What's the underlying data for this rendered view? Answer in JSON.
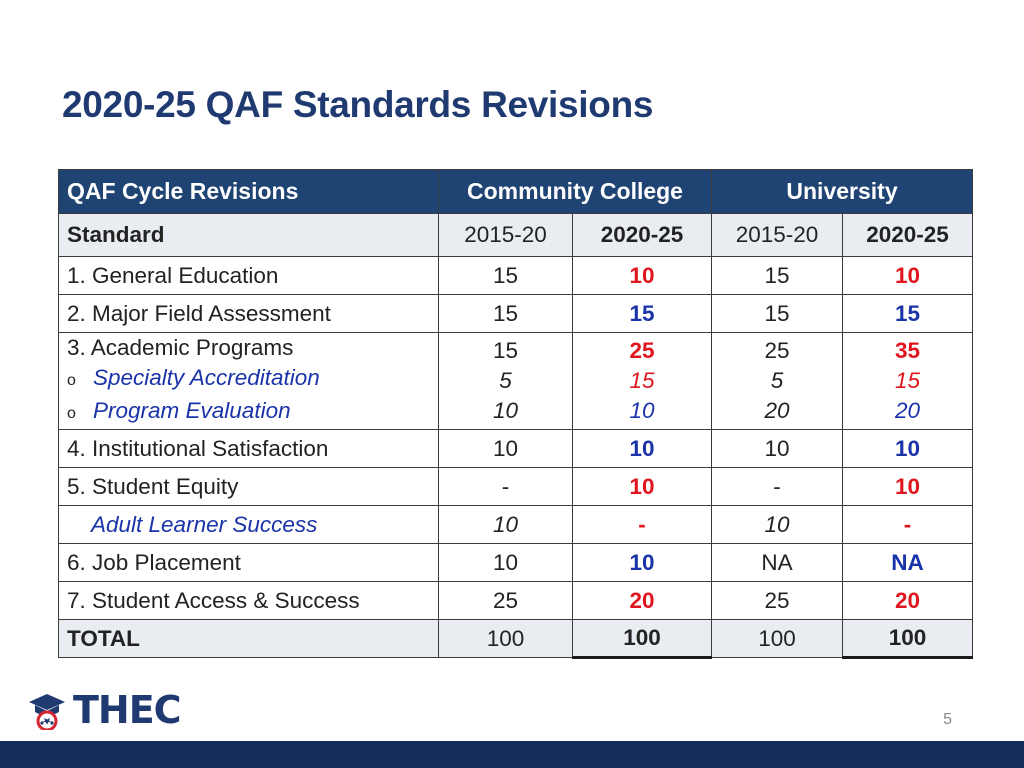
{
  "title": "2020-25 QAF Standards Revisions",
  "table": {
    "header": [
      "QAF Cycle Revisions",
      "Community College",
      "University"
    ],
    "subheader": [
      "Standard",
      "2015-20",
      "2020-25",
      "2015-20",
      "2020-25"
    ],
    "rows": [
      {
        "label": "1. General Education",
        "cc1520": "15",
        "cc2025": "10",
        "u1520": "15",
        "u2025": "10"
      },
      {
        "label": "2. Major Field Assessment",
        "cc1520": "15",
        "cc2025": "15",
        "u1520": "15",
        "u2025": "15"
      },
      {
        "label": "3. Academic Programs",
        "cc1520": "15",
        "cc2025": "25",
        "u1520": "25",
        "u2025": "35",
        "subitems": [
          {
            "label": "Specialty Accreditation",
            "cc1520": "5",
            "cc2025": "15",
            "u1520": "5",
            "u2025": "15"
          },
          {
            "label": "Program Evaluation",
            "cc1520": "10",
            "cc2025": "10",
            "u1520": "20",
            "u2025": "20"
          }
        ]
      },
      {
        "label": "4. Institutional Satisfaction",
        "cc1520": "10",
        "cc2025": "10",
        "u1520": "10",
        "u2025": "10"
      },
      {
        "label": "5. Student Equity",
        "cc1520": "-",
        "cc2025": "10",
        "u1520": "-",
        "u2025": "10"
      },
      {
        "label": "Adult Learner Success",
        "cc1520": "10",
        "cc2025": "-",
        "u1520": "10",
        "u2025": "-"
      },
      {
        "label": "6. Job Placement",
        "cc1520": "10",
        "cc2025": "10",
        "u1520": "NA",
        "u2025": "NA"
      },
      {
        "label": "7. Student Access & Success",
        "cc1520": "25",
        "cc2025": "20",
        "u1520": "25",
        "u2025": "20"
      }
    ],
    "total": {
      "label": "TOTAL",
      "cc1520": "100",
      "cc2025": "100",
      "u1520": "100",
      "u2025": "100"
    }
  },
  "bullet_marker": "o",
  "logo": {
    "text": "THEC"
  },
  "page_number": "5",
  "colors": {
    "title": "#1f3a70",
    "header_bg": "#1f4373",
    "red": "#e0161e",
    "blue": "#1a33a8",
    "footer": "#152c5a"
  }
}
